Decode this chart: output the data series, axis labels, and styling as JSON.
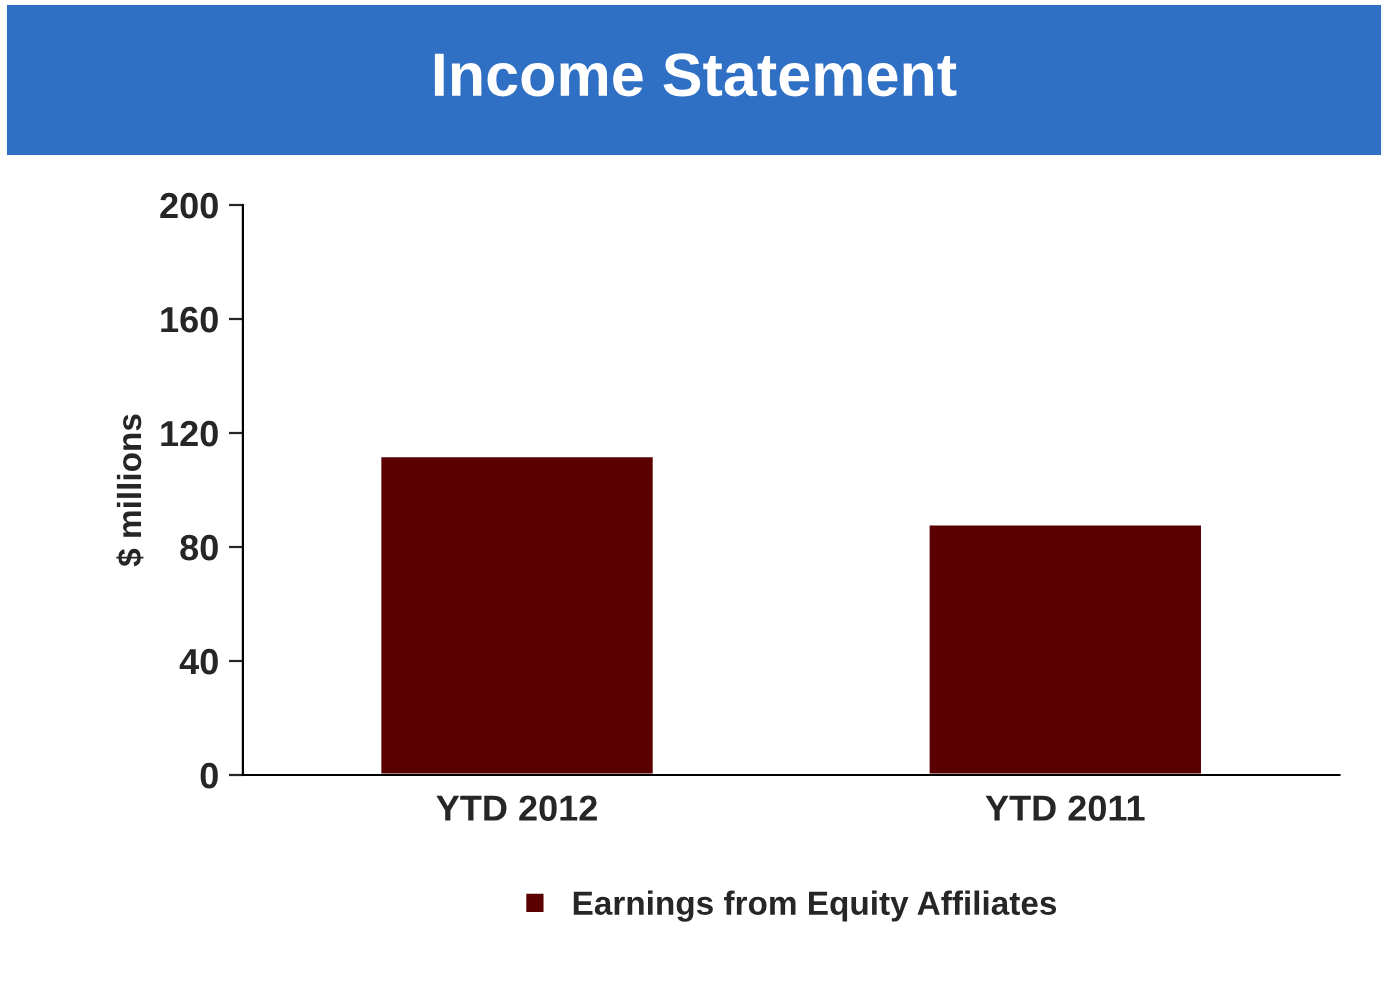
{
  "chart_data": {
    "type": "bar",
    "title": "Income Statement",
    "ylabel": "$ millions",
    "categories": [
      "YTD 2012",
      "YTD 2011"
    ],
    "series": [
      {
        "name": "Earnings from Equity Affiliates",
        "color": "#5a0000",
        "values": [
          112,
          88
        ]
      }
    ],
    "ylim": [
      0,
      200
    ],
    "yticks": [
      0,
      40,
      80,
      120,
      160,
      200
    ],
    "grid": false,
    "legend": "bottom"
  }
}
